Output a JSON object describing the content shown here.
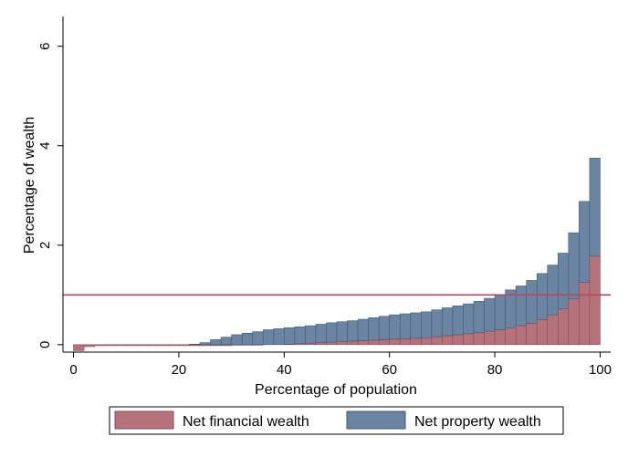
{
  "chart_data": {
    "type": "bar",
    "stacked": true,
    "xlabel": "Percentage of population",
    "ylabel": "Percentage of wealth",
    "xlim": [
      -2,
      102
    ],
    "ylim": [
      -0.15,
      6.6
    ],
    "xticks": [
      0,
      20,
      40,
      60,
      80,
      100
    ],
    "yticks": [
      0,
      2,
      4,
      6
    ],
    "grid": false,
    "legend_position": "bottom",
    "reference_line": {
      "y": 1,
      "color": "#b5485e"
    },
    "x": [
      1,
      3,
      5,
      7,
      9,
      11,
      13,
      15,
      17,
      19,
      21,
      23,
      25,
      27,
      29,
      31,
      33,
      35,
      37,
      39,
      41,
      43,
      45,
      47,
      49,
      51,
      53,
      55,
      57,
      59,
      61,
      63,
      65,
      67,
      69,
      71,
      73,
      75,
      77,
      79,
      81,
      83,
      85,
      87,
      89,
      91,
      93,
      95,
      97,
      99
    ],
    "series": [
      {
        "name": "Net financial wealth",
        "color": "#b5727a",
        "values": [
          -0.12,
          -0.04,
          -0.02,
          -0.02,
          -0.02,
          -0.02,
          -0.02,
          -0.02,
          -0.02,
          -0.02,
          -0.02,
          -0.02,
          -0.02,
          -0.02,
          -0.02,
          -0.01,
          -0.01,
          -0.01,
          0,
          0,
          0.01,
          0.02,
          0.03,
          0.04,
          0.05,
          0.06,
          0.07,
          0.08,
          0.09,
          0.1,
          0.11,
          0.12,
          0.13,
          0.14,
          0.16,
          0.18,
          0.2,
          0.22,
          0.24,
          0.27,
          0.3,
          0.34,
          0.38,
          0.43,
          0.5,
          0.6,
          0.72,
          0.92,
          1.25,
          1.78
        ]
      },
      {
        "name": "Net property wealth",
        "color": "#6a84a1",
        "values": [
          0,
          0,
          0,
          0,
          0,
          0,
          0,
          0,
          0,
          0,
          0,
          0.01,
          0.04,
          0.1,
          0.15,
          0.2,
          0.23,
          0.26,
          0.3,
          0.32,
          0.33,
          0.34,
          0.35,
          0.37,
          0.39,
          0.4,
          0.41,
          0.43,
          0.45,
          0.47,
          0.49,
          0.5,
          0.51,
          0.52,
          0.54,
          0.56,
          0.58,
          0.6,
          0.63,
          0.66,
          0.71,
          0.76,
          0.8,
          0.86,
          0.93,
          1.0,
          1.12,
          1.33,
          1.63,
          1.97
        ]
      }
    ]
  }
}
